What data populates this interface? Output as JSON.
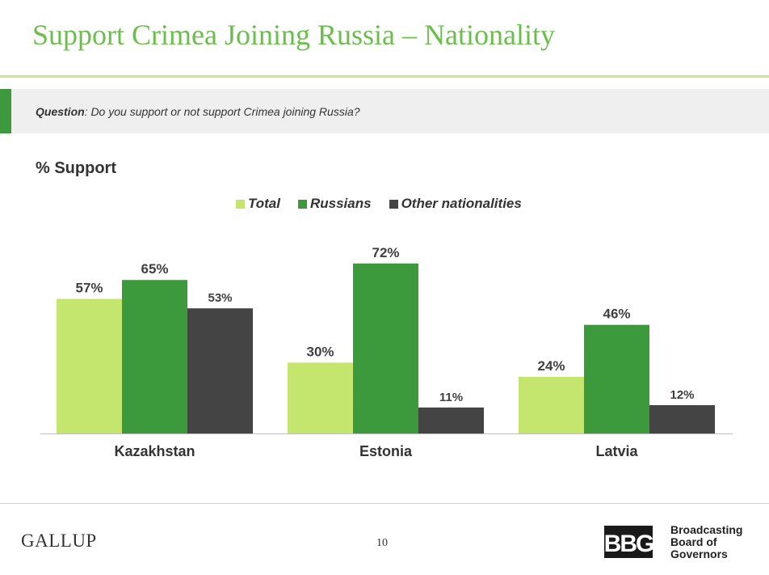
{
  "page": {
    "title": "Support Crimea Joining Russia – Nationality",
    "question_label": "Question",
    "question_text": ": Do you support or not support Crimea joining Russia?",
    "page_number": "10"
  },
  "footer": {
    "gallup_logo": "GALLUP",
    "bbg_mark": "BBG",
    "bbg_name": [
      "Broadcasting",
      "Board of",
      "Governors"
    ]
  },
  "colors": {
    "title": "#6abf4b",
    "total": "#c5e66e",
    "russians": "#3d9a3c",
    "other": "#444444"
  },
  "chart_data": {
    "type": "bar",
    "title": "% Support",
    "categories": [
      "Kazakhstan",
      "Estonia",
      "Latvia"
    ],
    "series": [
      {
        "name": "Total",
        "values": [
          57,
          30,
          24
        ],
        "color": "#c5e66e"
      },
      {
        "name": "Russians",
        "values": [
          65,
          72,
          46
        ],
        "color": "#3d9a3c"
      },
      {
        "name": "Other nationalities",
        "values": [
          53,
          11,
          12
        ],
        "color": "#444444"
      }
    ],
    "value_suffix": "%",
    "ylim": [
      0,
      100
    ],
    "legend": "top-center",
    "grid": false
  }
}
